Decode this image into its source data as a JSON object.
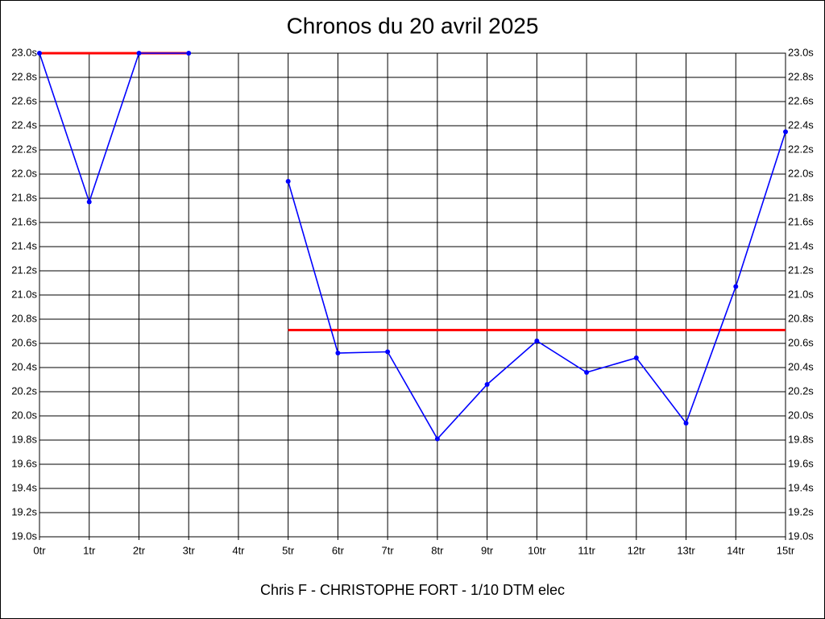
{
  "chart_data": {
    "type": "line",
    "title": "Chronos du 20 avril 2025",
    "x_label": "Chris F - CHRISTOPHE FORT - 1/10 DTM elec",
    "categories": [
      "0tr",
      "1tr",
      "2tr",
      "3tr",
      "4tr",
      "5tr",
      "6tr",
      "7tr",
      "8tr",
      "9tr",
      "10tr",
      "11tr",
      "12tr",
      "13tr",
      "14tr",
      "15tr"
    ],
    "series": [
      {
        "color": "#0000ff",
        "markers": true,
        "values": [
          23.0,
          21.77,
          23.0,
          23.0,
          null,
          21.94,
          20.52,
          20.53,
          19.81,
          20.26,
          20.62,
          20.36,
          20.48,
          19.94,
          21.07,
          22.35
        ]
      },
      {
        "color": "#ff0000",
        "markers": false,
        "values": [
          23.0,
          23.0,
          23.0,
          23.0,
          null,
          20.71,
          20.71,
          20.71,
          20.71,
          20.71,
          20.71,
          20.71,
          20.71,
          20.71,
          20.71,
          20.71
        ]
      }
    ],
    "ylim": [
      19.0,
      23.0
    ],
    "yticks": [
      {
        "value": 19.0,
        "label": "19.0s"
      },
      {
        "value": 19.2,
        "label": "19.2s"
      },
      {
        "value": 19.4,
        "label": "19.4s"
      },
      {
        "value": 19.6,
        "label": "19.6s"
      },
      {
        "value": 19.8,
        "label": "19.8s"
      },
      {
        "value": 20.0,
        "label": "20.0s"
      },
      {
        "value": 20.2,
        "label": "20.2s"
      },
      {
        "value": 20.4,
        "label": "20.4s"
      },
      {
        "value": 20.6,
        "label": "20.6s"
      },
      {
        "value": 20.8,
        "label": "20.8s"
      },
      {
        "value": 21.0,
        "label": "21.0s"
      },
      {
        "value": 21.2,
        "label": "21.2s"
      },
      {
        "value": 21.4,
        "label": "21.4s"
      },
      {
        "value": 21.6,
        "label": "21.6s"
      },
      {
        "value": 21.8,
        "label": "21.8s"
      },
      {
        "value": 22.0,
        "label": "22.0s"
      },
      {
        "value": 22.2,
        "label": "22.2s"
      },
      {
        "value": 22.4,
        "label": "22.4s"
      },
      {
        "value": 22.6,
        "label": "22.6s"
      },
      {
        "value": 22.8,
        "label": "22.8s"
      },
      {
        "value": 23.0,
        "label": "23.0s"
      }
    ],
    "grid": true,
    "right_axis_labels": true
  }
}
